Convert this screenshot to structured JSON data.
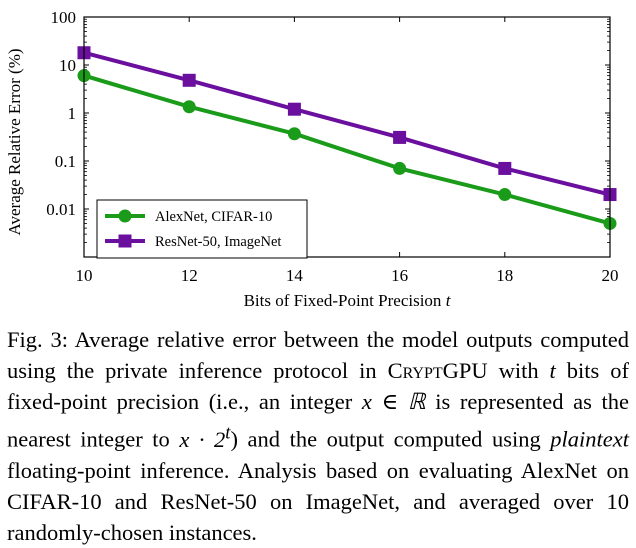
{
  "chart_data": {
    "type": "line",
    "xlabel": "Bits of Fixed-Point Precision",
    "xlabel_var": "t",
    "ylabel": "Average Relative Error (%)",
    "y_scale": "log",
    "ylim": [
      0.001,
      100
    ],
    "xlim": [
      10,
      20
    ],
    "x": [
      10,
      12,
      14,
      16,
      18,
      20
    ],
    "x_tick_labels": [
      "10",
      "12",
      "14",
      "16",
      "18",
      "20"
    ],
    "y_tick_values": [
      0.01,
      0.1,
      1,
      10,
      100
    ],
    "y_tick_labels": [
      "0.01",
      "0.1",
      "1",
      "10",
      "100"
    ],
    "grid": false,
    "legend_position": "bottom-left",
    "series": [
      {
        "name": "AlexNet, CIFAR-10",
        "marker": "circle",
        "color": "#1a9b1a",
        "values": [
          6,
          1.35,
          0.37,
          0.07,
          0.02,
          0.005
        ]
      },
      {
        "name": "ResNet-50, ImageNet",
        "marker": "square",
        "color": "#6a0f9e",
        "values": [
          18,
          4.8,
          1.2,
          0.31,
          0.07,
          0.02
        ]
      }
    ]
  },
  "caption": {
    "label": "Fig. 3:",
    "t1": "Average relative error between the model outputs computed using the private inference protocol in ",
    "system_name": "CryptGPU",
    "t2": " with ",
    "var_t": "t",
    "t3": " bits of fixed-point precision (i.e., an integer ",
    "var_x_in_R": "x ∈ ℝ",
    "t4": " is represented as the nearest integer to ",
    "expr_base": "x · 2",
    "expr_exp": "t",
    "t5": ") and the output computed using ",
    "emph": "plaintext",
    "t6": " floating-point inference. Analysis based on evaluating AlexNet on CIFAR-10 and ResNet-50 on ImageNet, and averaged over 10 randomly-chosen instances."
  }
}
